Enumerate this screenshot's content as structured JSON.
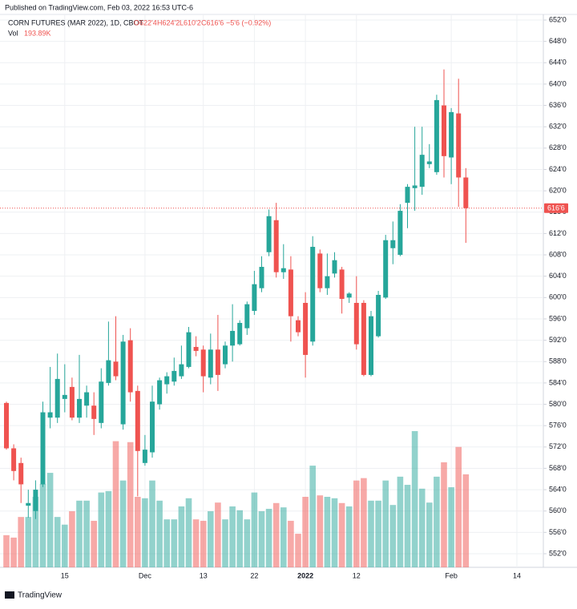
{
  "header": "Published on TradingView.com, Feb 03, 2022 16:53 UTC-6",
  "footer": "TradingView",
  "chart_data": {
    "type": "candlestick",
    "title": "CORN FUTURES (MAR 2022), 1D, CBOT",
    "ohlc_labels": [
      "O622'4",
      "H624'2",
      "L610'2",
      "C616'6"
    ],
    "change_label": "−5'6 (−0.92%)",
    "volume_name": "Vol",
    "volume_last_label": "193.89K",
    "last_price": 616.75,
    "last_price_label": "616'6",
    "up_color": "#26a69a",
    "down_color": "#ef5350",
    "grid": true,
    "categories": [
      null,
      null,
      null,
      null,
      null,
      null,
      null,
      null,
      "15",
      null,
      null,
      null,
      null,
      null,
      null,
      null,
      null,
      null,
      null,
      "Dec",
      null,
      null,
      null,
      null,
      null,
      null,
      null,
      "13",
      null,
      null,
      null,
      null,
      null,
      null,
      "22",
      null,
      null,
      null,
      null,
      null,
      null,
      "2022",
      null,
      null,
      null,
      null,
      null,
      null,
      "12",
      null,
      null,
      null,
      null,
      null,
      null,
      null,
      null,
      null,
      null,
      null,
      null,
      "Feb",
      null,
      null,
      null,
      null,
      null,
      null,
      null,
      null,
      "14",
      null,
      null,
      null
    ],
    "open": [
      580.25,
      571.75,
      569,
      561,
      560,
      565,
      577.5,
      577.5,
      581,
      583.25,
      577.5,
      579.75,
      579.75,
      576.5,
      584,
      588,
      576.25,
      592,
      582.5,
      569,
      571,
      580,
      583.75,
      584.25,
      585.25,
      587,
      590.75,
      590.25,
      585,
      590.25,
      587.5,
      591,
      591.25,
      594.25,
      597.5,
      601.75,
      608.5,
      614.5,
      604.75,
      605.25,
      595.75,
      599,
      591.75,
      608.25,
      601.75,
      604.5,
      605.25,
      600,
      599,
      599,
      585.5,
      592.75,
      600,
      609.25,
      608,
      617.75,
      620.5,
      620.75,
      625,
      623.5,
      636,
      626.25,
      634.5,
      622.5,
      null,
      null,
      null,
      null,
      null,
      null,
      null,
      null,
      null,
      null
    ],
    "high": [
      580.5,
      572.5,
      570,
      564,
      565.75,
      580.5,
      587,
      589.5,
      587.5,
      585,
      589.25,
      583.5,
      582.25,
      586.75,
      595.5,
      596.5,
      593,
      594.25,
      583.5,
      574.25,
      583.5,
      585,
      586,
      588.75,
      591,
      594.5,
      592.75,
      591,
      593.25,
      596.75,
      591.75,
      598.75,
      595.75,
      599.25,
      605,
      607.75,
      616.5,
      617.75,
      610,
      607.75,
      596.5,
      601,
      611.5,
      609,
      608.25,
      608.5,
      605.75,
      601,
      604,
      599.5,
      597.5,
      601.25,
      611.75,
      614.25,
      617.5,
      621.25,
      632,
      632,
      628.75,
      638,
      642.75,
      635.5,
      641,
      624.25,
      null,
      null,
      null,
      null,
      null,
      null,
      null,
      null,
      null,
      null
    ],
    "low": [
      571.5,
      565.75,
      561.5,
      558.75,
      558.5,
      564.5,
      575.5,
      576.5,
      578.5,
      577,
      576.5,
      577.5,
      574.25,
      575.5,
      583.5,
      584.5,
      575.25,
      580.5,
      562.75,
      568.5,
      570,
      579,
      582,
      583.5,
      584.75,
      586.75,
      589,
      582.25,
      583.75,
      582.5,
      586.75,
      588,
      591,
      593,
      596.75,
      601,
      607.75,
      603.75,
      603.5,
      591.75,
      592.75,
      585,
      591,
      601,
      600.5,
      603.75,
      597,
      599,
      590.25,
      585.25,
      585.25,
      592.5,
      599.75,
      606.25,
      607.75,
      613,
      616.25,
      619.25,
      624.25,
      623,
      622.5,
      621.25,
      617,
      610.25,
      null,
      null,
      null,
      null,
      null,
      null,
      null,
      null,
      null,
      null
    ],
    "close": [
      571.75,
      567.5,
      565,
      561.5,
      564,
      578.5,
      578.5,
      584.75,
      581.75,
      577.5,
      581,
      582.25,
      577.25,
      584.25,
      588.25,
      585.25,
      591.75,
      582.25,
      571.25,
      571.5,
      580.5,
      584.5,
      585.25,
      586.25,
      587.5,
      593.5,
      590,
      585.25,
      590.25,
      585.5,
      591,
      593.75,
      595.25,
      598.75,
      602.5,
      605.75,
      615.25,
      604.75,
      605.5,
      596.5,
      593.5,
      589.25,
      609.5,
      601.75,
      604,
      607,
      599.75,
      600.75,
      591.25,
      585.5,
      596.5,
      600.5,
      610.75,
      610.75,
      616.25,
      620.75,
      621,
      626.75,
      625.5,
      637,
      626.5,
      634.75,
      622.5,
      616.75,
      null,
      null,
      null,
      null,
      null,
      null,
      null,
      null,
      null,
      null
    ],
    "volume": [
      67000,
      62000,
      105000,
      105000,
      147000,
      174000,
      197000,
      105000,
      89000,
      117000,
      139000,
      139000,
      97000,
      156000,
      159000,
      263000,
      181000,
      261000,
      147000,
      144000,
      181000,
      139000,
      100000,
      100000,
      127000,
      144000,
      100000,
      97000,
      117000,
      135000,
      100000,
      127000,
      119000,
      100000,
      156000,
      117000,
      122000,
      134000,
      125000,
      97000,
      70000,
      147000,
      212000,
      150000,
      147000,
      144000,
      134000,
      127000,
      181000,
      186000,
      139000,
      139000,
      181000,
      130000,
      189000,
      172000,
      284000,
      164000,
      135000,
      189000,
      219000,
      167000,
      251000,
      193890,
      null,
      null,
      null,
      null,
      null,
      null,
      null,
      null,
      null,
      null
    ],
    "ylim": [
      549.45,
      653.05
    ],
    "yticks": [
      {
        "value": 552,
        "label": "552'0"
      },
      {
        "value": 556,
        "label": "556'0"
      },
      {
        "value": 560,
        "label": "560'0"
      },
      {
        "value": 564,
        "label": "564'0"
      },
      {
        "value": 568,
        "label": "568'0"
      },
      {
        "value": 572,
        "label": "572'0"
      },
      {
        "value": 576,
        "label": "576'0"
      },
      {
        "value": 580,
        "label": "580'0"
      },
      {
        "value": 584,
        "label": "584'0"
      },
      {
        "value": 588,
        "label": "588'0"
      },
      {
        "value": 592,
        "label": "592'0"
      },
      {
        "value": 596,
        "label": "596'0"
      },
      {
        "value": 600,
        "label": "600'0"
      },
      {
        "value": 604,
        "label": "604'0"
      },
      {
        "value": 608,
        "label": "608'0"
      },
      {
        "value": 612,
        "label": "612'0"
      },
      {
        "value": 616,
        "label": "616'0"
      },
      {
        "value": 620,
        "label": "620'0"
      },
      {
        "value": 624,
        "label": "624'0"
      },
      {
        "value": 628,
        "label": "628'0"
      },
      {
        "value": 632,
        "label": "632'0"
      },
      {
        "value": 636,
        "label": "636'0"
      },
      {
        "value": 640,
        "label": "640'0"
      },
      {
        "value": 644,
        "label": "644'0"
      },
      {
        "value": 648,
        "label": "648'0"
      },
      {
        "value": 652,
        "label": "652'0"
      }
    ]
  }
}
